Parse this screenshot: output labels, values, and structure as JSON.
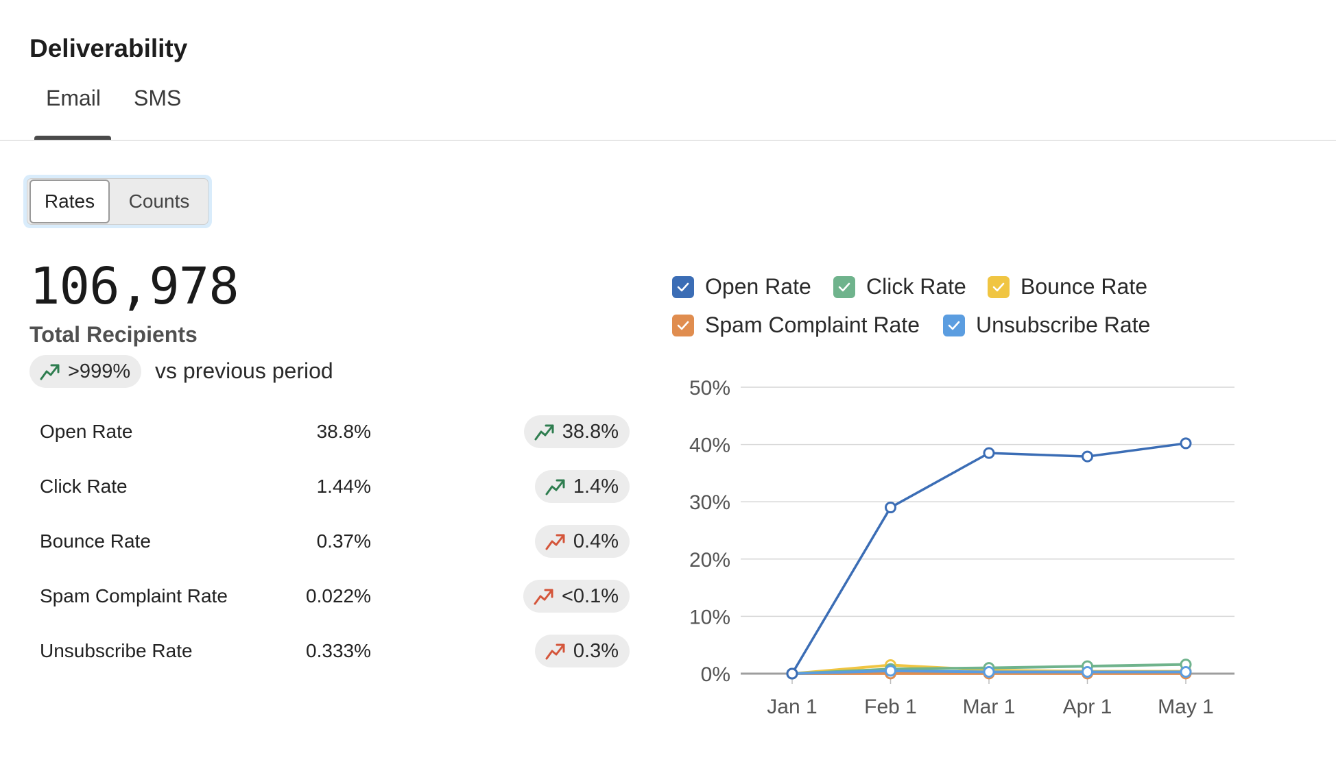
{
  "title": "Deliverability",
  "tabs": [
    {
      "label": "Email",
      "active": true
    },
    {
      "label": "SMS",
      "active": false
    }
  ],
  "segmented": {
    "selected": "Rates",
    "other": "Counts"
  },
  "summary": {
    "total": "106,978",
    "total_label": "Total Recipients",
    "change": ">999%",
    "change_suffix": "vs previous period"
  },
  "metrics": [
    {
      "label": "Open Rate",
      "value": "38.8%",
      "change": "38.8%",
      "trend": "up-good"
    },
    {
      "label": "Click Rate",
      "value": "1.44%",
      "change": "1.4%",
      "trend": "up-good"
    },
    {
      "label": "Bounce Rate",
      "value": "0.37%",
      "change": "0.4%",
      "trend": "up-bad"
    },
    {
      "label": "Spam Complaint Rate",
      "value": "0.022%",
      "change": "<0.1%",
      "trend": "up-bad"
    },
    {
      "label": "Unsubscribe Rate",
      "value": "0.333%",
      "change": "0.3%",
      "trend": "up-bad"
    }
  ],
  "colors": {
    "trend_good": "#2e7d4f",
    "trend_bad": "#d4553a",
    "open": "#3b6db5",
    "click": "#6fb38c",
    "bounce": "#f0c542",
    "spam": "#e08d4f",
    "unsub": "#5b9de0"
  },
  "chart_data": {
    "type": "line",
    "categories": [
      "Jan 1",
      "Feb 1",
      "Mar 1",
      "Apr 1",
      "May 1"
    ],
    "ylim": [
      0,
      50
    ],
    "y_ticks": [
      "0%",
      "10%",
      "20%",
      "30%",
      "40%",
      "50%"
    ],
    "grid": true,
    "legend_position": "top",
    "series": [
      {
        "name": "Open Rate",
        "color": "#3b6db5",
        "values": [
          0,
          29,
          38.5,
          37.9,
          40.2
        ]
      },
      {
        "name": "Click Rate",
        "color": "#6fb38c",
        "values": [
          0,
          0.8,
          1.0,
          1.3,
          1.6
        ]
      },
      {
        "name": "Bounce Rate",
        "color": "#f0c542",
        "values": [
          0,
          1.5,
          0.6,
          0.4,
          0.4
        ]
      },
      {
        "name": "Spam Complaint Rate",
        "color": "#e08d4f",
        "values": [
          0,
          0.02,
          0.02,
          0.02,
          0.02
        ]
      },
      {
        "name": "Unsubscribe Rate",
        "color": "#5b9de0",
        "values": [
          0,
          0.5,
          0.3,
          0.3,
          0.3
        ]
      }
    ]
  }
}
